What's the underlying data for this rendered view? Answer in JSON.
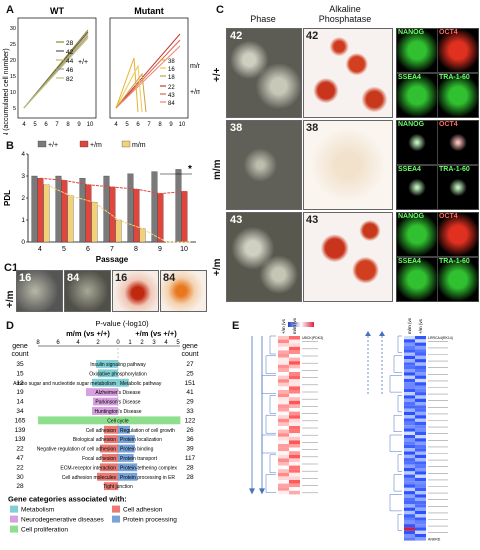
{
  "panelA": {
    "label": "A",
    "ylabel": "LN (accumulated cell number)",
    "wt": {
      "title": "WT",
      "legend": [
        "28",
        "42",
        "44",
        "46",
        "82"
      ],
      "group": "+/+"
    },
    "mutant": {
      "title": "Mutant",
      "legend_mm": [
        "38",
        "16",
        "18"
      ],
      "legend_pm": [
        "22",
        "43",
        "84"
      ],
      "group_mm": "m/m",
      "group_pm": "+/m"
    },
    "xticks": [
      "4",
      "5",
      "6",
      "7",
      "8",
      "9",
      "10"
    ],
    "yticks": [
      "5",
      "10",
      "15",
      "20",
      "25",
      "30"
    ]
  },
  "panelB": {
    "label": "B",
    "ylabel": "PDL",
    "xlabel": "Passage",
    "legend": [
      "+/+",
      "+/m",
      "m/m"
    ],
    "sig": "*",
    "colors": {
      "wt": "#7a7a7a",
      "pm": "#e2453c",
      "mm": "#f2d178"
    }
  },
  "chart_data": {
    "type": "bar",
    "xlabel": "Passage",
    "ylabel": "PDL",
    "categories": [
      "4",
      "5",
      "6",
      "7",
      "8",
      "9",
      "10"
    ],
    "ylim": [
      0,
      4
    ],
    "series": [
      {
        "name": "+/+",
        "values": [
          3.0,
          3.0,
          2.9,
          3.0,
          3.1,
          3.2,
          3.3
        ]
      },
      {
        "name": "+/m",
        "values": [
          2.9,
          2.8,
          2.6,
          2.5,
          2.4,
          2.2,
          2.3
        ]
      },
      {
        "name": "m/m",
        "values": [
          2.6,
          2.1,
          1.8,
          1.0,
          0.6,
          0,
          0
        ]
      }
    ]
  },
  "panelC1": {
    "label": "C1",
    "genotype": "+/m",
    "photos": [
      "16",
      "84",
      "16",
      "84"
    ]
  },
  "panelC": {
    "label": "C",
    "col_phase": "Phase",
    "col_ap": "Alkaline\nPhosphatase",
    "rows": [
      {
        "genotype": "+/+",
        "line": "42"
      },
      {
        "genotype": "m/m",
        "line": "38"
      },
      {
        "genotype": "+/m",
        "line": "43"
      }
    ],
    "markers": [
      "NANOG",
      "OCT4",
      "SSEA4",
      "TRA-1-60"
    ]
  },
  "panelD": {
    "label": "D",
    "title": "P-value (-log10)",
    "left_header": "m/m (vs +/+)",
    "right_header": "+/m (vs +/+)",
    "gene_count": "gene\ncount",
    "axis_left": [
      "8",
      "6",
      "4",
      "2",
      "0"
    ],
    "axis_right": [
      "1",
      "2",
      "3",
      "4",
      "5"
    ],
    "rows": [
      {
        "term": "Insulin signaling pathway",
        "left": 35,
        "right": 27,
        "lv": 2.2,
        "rv": 0,
        "cat": "met"
      },
      {
        "term": "Oxidative phosphorylation",
        "left": 15,
        "right": 25,
        "lv": 2.0,
        "rv": 0,
        "cat": "met"
      },
      {
        "term": "Amino sugar and nucleotide sugar metabolism",
        "left": 12,
        "right": 151,
        "lv": 2.6,
        "rv": 0.9,
        "cat": "met",
        "rterm": "Metabolic pathway"
      },
      {
        "term": "Alzheimer's Disease",
        "left": 19,
        "right": 41,
        "lv": 3.2,
        "rv": 0,
        "cat": "neuro"
      },
      {
        "term": "Parkinson's Disease",
        "left": 14,
        "right": 29,
        "lv": 2.5,
        "rv": 0,
        "cat": "neuro"
      },
      {
        "term": "Huntington's Disease",
        "left": 34,
        "right": 33,
        "lv": 2.6,
        "rv": 0,
        "cat": "neuro"
      },
      {
        "term": "Cell cycle",
        "left": 165,
        "right": 122,
        "lv": 8,
        "rv": 5.2,
        "cat": "prolif"
      },
      {
        "term": "Cell adhesion",
        "left": 139,
        "right": 26,
        "lv": 1.4,
        "rv": 1.0,
        "cat": "adh",
        "rterm": "Regulation of cell growth"
      },
      {
        "term": "Biological adhesion",
        "left": 139,
        "right": 36,
        "lv": 1.4,
        "rv": 1.4,
        "cat": "adh",
        "rterm": "Protein localization"
      },
      {
        "term": "Negative regulation of cell adhesion",
        "left": 22,
        "right": 39,
        "lv": 1.8,
        "rv": 1.4,
        "cat": "adh",
        "rterm": "Protein binding"
      },
      {
        "term": "Focal adhesion",
        "left": 47,
        "right": 117,
        "lv": 1.6,
        "rv": 1.3,
        "cat": "adh",
        "rterm": "Protein transport"
      },
      {
        "term": "ECM-receptor interaction",
        "left": 22,
        "right": 28,
        "lv": 1.8,
        "rv": 1.6,
        "cat": "adh",
        "rterm": "Protein-tethering complex"
      },
      {
        "term": "Cell adhesion molecules",
        "left": 30,
        "right": 28,
        "lv": 2.1,
        "rv": 1.6,
        "cat": "adh",
        "rterm": "Protein processing in ER"
      },
      {
        "term": "Tight junction",
        "left": 28,
        "right": "",
        "lv": 1.4,
        "rv": 0,
        "cat": "adh"
      }
    ],
    "legend_title": "Gene categories associated with:",
    "legend": [
      {
        "key": "met",
        "name": "Metabolism",
        "color": "#7fd0d6"
      },
      {
        "key": "adh",
        "name": "Cell adhesion",
        "color": "#e97a74"
      },
      {
        "key": "neuro",
        "name": "Neurodegenerative diseases",
        "color": "#d7a0e0"
      },
      {
        "key": "prot",
        "name": "Protein processing",
        "color": "#77a3d9"
      },
      {
        "key": "prolif",
        "name": "Cell proliferation",
        "color": "#8ede8e"
      }
    ]
  },
  "panelE": {
    "label": "E",
    "left_cols": [
      "+/m (vs +/+)",
      "m/m (vs +/+)"
    ],
    "right_cols": [
      "m/m (vs +/+)",
      "+/m (vs +/+)"
    ],
    "first_gene": "UBCK(PDK3)",
    "right_first_gene": "LRRCA4(RK14)",
    "last_gene": "ANKRD"
  }
}
